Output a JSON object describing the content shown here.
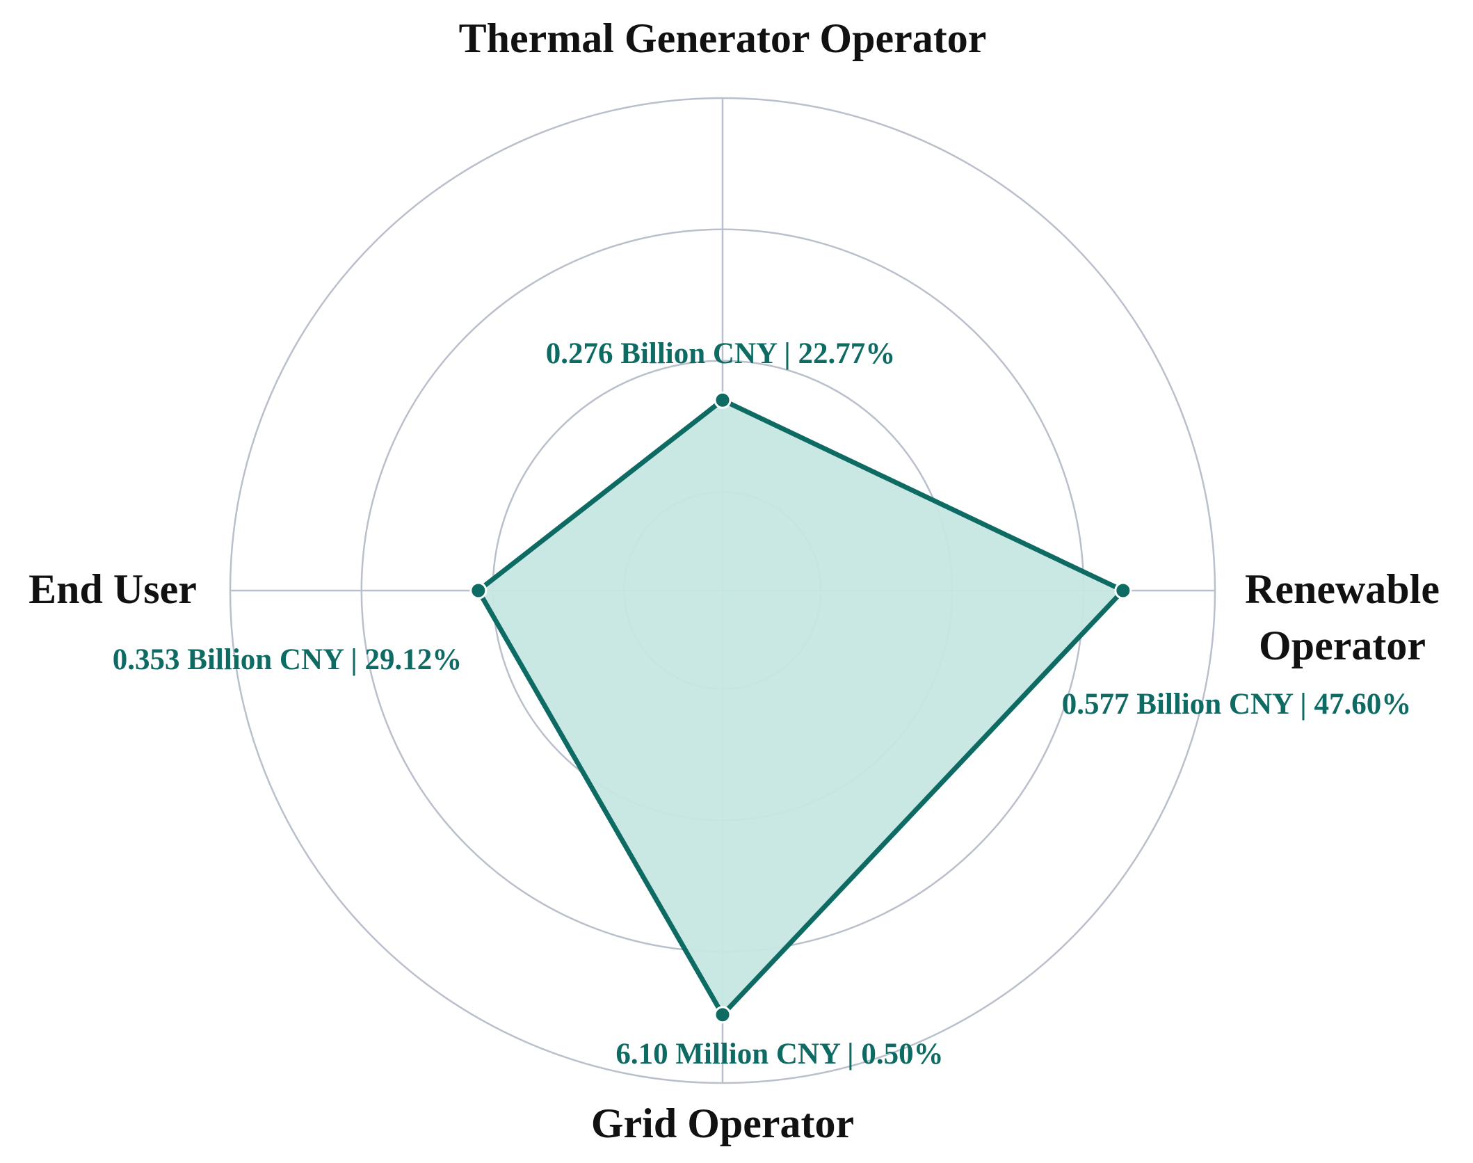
{
  "chart_data": {
    "type": "radar",
    "categories": [
      "Thermal Generator Operator",
      "Renewable Operator",
      "Grid Operator",
      "End User"
    ],
    "values": [
      1.7,
      3.3,
      3.48,
      2.11
    ],
    "annotations": [
      "0.276 Billion CNY  | 22.77%",
      "0.577 Billion CNY  | 47.60%",
      "6.10 Million CNY  | 0.50%",
      "0.353 Billion CNY  | 29.12%"
    ],
    "color": "#0e6b63",
    "fill_color": "#c6e7e3",
    "rlim": [
      0.25,
      4
    ],
    "rticks": [
      1,
      2,
      3,
      4
    ],
    "grid": true
  }
}
